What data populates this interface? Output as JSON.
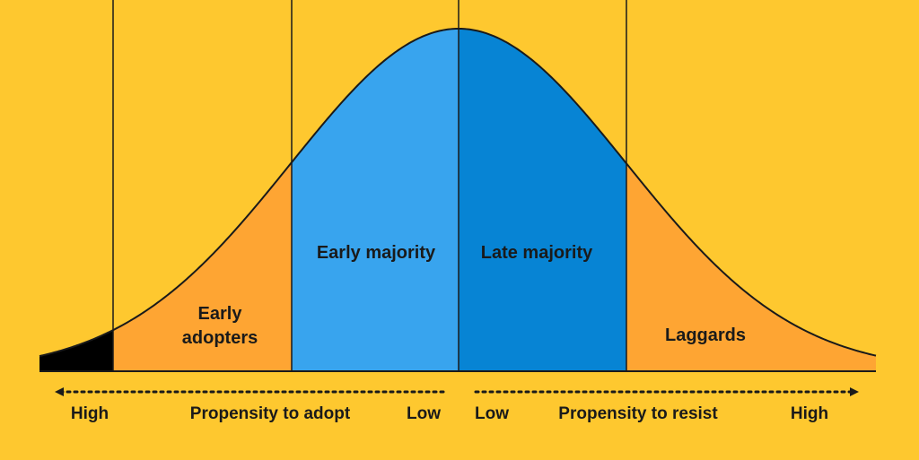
{
  "colors": {
    "background": "#FEC82F",
    "innovators": "#000000",
    "early_adopters": "#FEA533",
    "early_majority": "#38A4EE",
    "late_majority": "#0784D4",
    "laggards": "#FEA533",
    "outline": "#1a1a1a"
  },
  "segments": {
    "early_adopters_line1": "Early",
    "early_adopters_line2": "adopters",
    "early_majority": "Early majority",
    "late_majority": "Late majority",
    "laggards": "Laggards"
  },
  "axis": {
    "left_high": "High",
    "left_title": "Propensity to adopt",
    "left_low": "Low",
    "right_low": "Low",
    "right_title": "Propensity to resist",
    "right_high": "High"
  }
}
